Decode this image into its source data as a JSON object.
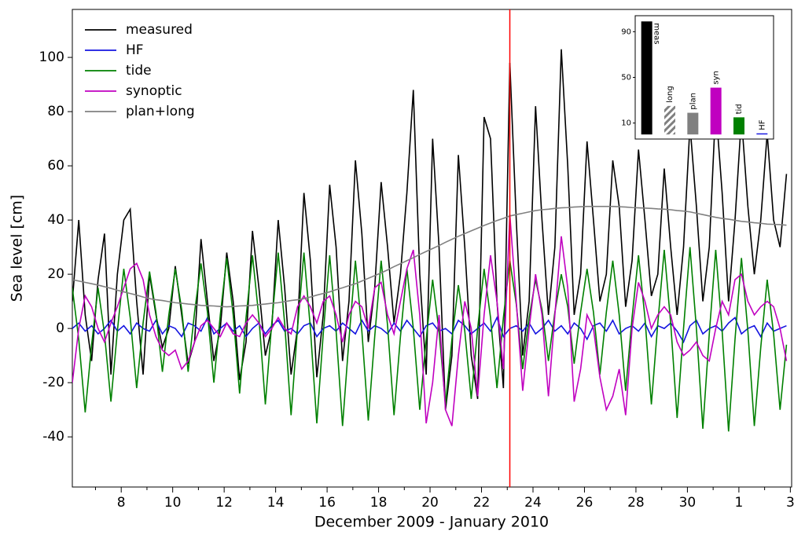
{
  "chart_data": {
    "type": "line",
    "xlabel": "December 2009 - January 2010",
    "ylabel": "Sea level [cm]",
    "xlim": [
      6.1,
      34.05
    ],
    "ylim": [
      -58.5,
      117.7
    ],
    "xticks": [
      8,
      10,
      12,
      14,
      16,
      18,
      20,
      22,
      24,
      26,
      28,
      30,
      {
        "value": 32,
        "label": "1"
      },
      {
        "value": 34,
        "label": "3"
      }
    ],
    "xminor_ticks": [
      7,
      9,
      11,
      13,
      15,
      17,
      19,
      21,
      23,
      25,
      27,
      29,
      31,
      33
    ],
    "yticks": [
      -40,
      -20,
      0,
      20,
      40,
      60,
      80,
      100
    ],
    "legend": "upper left",
    "vline": {
      "x": 23.1,
      "color": "#ff0000"
    },
    "x": [
      6.1,
      6.35,
      6.6,
      6.85,
      7.1,
      7.35,
      7.6,
      7.85,
      8.1,
      8.35,
      8.6,
      8.85,
      9.1,
      9.35,
      9.6,
      9.85,
      10.1,
      10.35,
      10.6,
      10.85,
      11.1,
      11.35,
      11.6,
      11.85,
      12.1,
      12.35,
      12.6,
      12.85,
      13.1,
      13.35,
      13.6,
      13.85,
      14.1,
      14.35,
      14.6,
      14.85,
      15.1,
      15.35,
      15.6,
      15.85,
      16.1,
      16.35,
      16.6,
      16.85,
      17.1,
      17.35,
      17.6,
      17.85,
      18.1,
      18.35,
      18.6,
      18.85,
      19.1,
      19.35,
      19.6,
      19.85,
      20.1,
      20.35,
      20.6,
      20.85,
      21.1,
      21.35,
      21.6,
      21.85,
      22.1,
      22.35,
      22.6,
      22.85,
      23.1,
      23.35,
      23.6,
      23.85,
      24.1,
      24.35,
      24.6,
      24.85,
      25.1,
      25.35,
      25.6,
      25.85,
      26.1,
      26.35,
      26.6,
      26.85,
      27.1,
      27.35,
      27.6,
      27.85,
      28.1,
      28.35,
      28.6,
      28.85,
      29.1,
      29.35,
      29.6,
      29.85,
      30.1,
      30.35,
      30.6,
      30.85,
      31.1,
      31.35,
      31.6,
      31.85,
      32.1,
      32.35,
      32.6,
      32.85,
      33.1,
      33.35,
      33.6,
      33.85
    ],
    "series": [
      {
        "name": "measured",
        "color": "#000000",
        "values": [
          10,
          40,
          5,
          -12,
          18,
          35,
          -17,
          20,
          40,
          44,
          10,
          -17,
          20,
          5,
          -7,
          0,
          23,
          5,
          -13,
          -5,
          33,
          10,
          -12,
          0,
          28,
          10,
          -19,
          -5,
          36,
          15,
          -10,
          0,
          40,
          15,
          -17,
          0,
          50,
          25,
          -18,
          5,
          53,
          30,
          -12,
          10,
          62,
          35,
          -5,
          15,
          54,
          30,
          2,
          20,
          50,
          88,
          20,
          -17,
          70,
          30,
          -30,
          -10,
          64,
          30,
          -10,
          -26,
          78,
          70,
          10,
          -22,
          98,
          40,
          -10,
          10,
          82,
          40,
          5,
          30,
          103,
          60,
          5,
          20,
          69,
          40,
          10,
          20,
          62,
          45,
          8,
          25,
          66,
          40,
          12,
          20,
          59,
          30,
          5,
          30,
          75,
          45,
          10,
          30,
          82,
          50,
          10,
          40,
          78,
          45,
          20,
          40,
          72,
          40,
          30,
          57
        ]
      },
      {
        "name": "HF",
        "color": "#1515e0",
        "values": [
          0,
          2,
          -1,
          1,
          -2,
          0,
          3,
          -1,
          1,
          -2,
          2,
          0,
          -1,
          3,
          -2,
          1,
          0,
          -3,
          2,
          1,
          -1,
          4,
          -2,
          0,
          2,
          -1,
          1,
          -3,
          0,
          2,
          -2,
          1,
          3,
          -1,
          0,
          -2,
          1,
          2,
          -3,
          0,
          1,
          -1,
          2,
          0,
          -2,
          3,
          -1,
          1,
          0,
          -2,
          2,
          -1,
          3,
          0,
          -3,
          1,
          2,
          -1,
          0,
          -2,
          3,
          1,
          -2,
          0,
          2,
          -1,
          4,
          -3,
          0,
          1,
          -1,
          2,
          -2,
          0,
          3,
          -1,
          1,
          -2,
          2,
          0,
          -4,
          1,
          2,
          -1,
          3,
          -2,
          0,
          1,
          -1,
          2,
          -3,
          1,
          0,
          2,
          -1,
          -5,
          1,
          3,
          -2,
          0,
          1,
          -1,
          2,
          4,
          -2,
          0,
          1,
          -3,
          2,
          -1,
          0,
          1
        ]
      },
      {
        "name": "tide",
        "color": "#008000",
        "values": [
          15,
          -4,
          -31,
          -6,
          15,
          -2,
          -27,
          -1,
          22,
          4,
          -22,
          2,
          21,
          6,
          -16,
          5,
          22,
          7,
          -16,
          6,
          24,
          6,
          -20,
          5,
          26,
          5,
          -24,
          4,
          27,
          4,
          -28,
          2,
          28,
          2,
          -32,
          0,
          28,
          0,
          -35,
          -2,
          27,
          -1,
          -36,
          -4,
          25,
          -1,
          -34,
          -3,
          25,
          1,
          -32,
          -3,
          22,
          0,
          -30,
          -4,
          18,
          -1,
          -28,
          -4,
          16,
          -1,
          -26,
          0,
          22,
          4,
          -22,
          4,
          25,
          9,
          -15,
          4,
          18,
          7,
          -12,
          6,
          20,
          8,
          -13,
          6,
          22,
          6,
          -17,
          6,
          25,
          5,
          -23,
          4,
          27,
          4,
          -28,
          2,
          29,
          2,
          -33,
          0,
          30,
          0,
          -37,
          -2,
          29,
          -1,
          -38,
          -4,
          26,
          -1,
          -36,
          -7,
          18,
          -2,
          -30,
          -6
        ]
      },
      {
        "name": "synoptic",
        "color": "#c000c0",
        "values": [
          -20,
          0,
          12,
          8,
          0,
          -5,
          2,
          8,
          15,
          22,
          24,
          18,
          5,
          -3,
          -8,
          -10,
          -8,
          -15,
          -12,
          -5,
          1,
          3,
          0,
          -3,
          2,
          -2,
          -3,
          2,
          5,
          2,
          -3,
          0,
          4,
          0,
          -2,
          8,
          12,
          8,
          2,
          10,
          12,
          5,
          -5,
          5,
          10,
          8,
          0,
          15,
          17,
          5,
          -2,
          10,
          22,
          29,
          5,
          -35,
          -20,
          5,
          -30,
          -36,
          -10,
          10,
          0,
          -25,
          5,
          27,
          10,
          -15,
          42,
          10,
          -23,
          0,
          20,
          5,
          -25,
          5,
          34,
          15,
          -27,
          -15,
          5,
          0,
          -18,
          -30,
          -25,
          -15,
          -32,
          0,
          17,
          10,
          0,
          5,
          8,
          5,
          -5,
          -10,
          -8,
          -5,
          -10,
          -12,
          0,
          10,
          5,
          18,
          20,
          10,
          5,
          8,
          10,
          8,
          0,
          -12
        ]
      },
      {
        "name": "plan+long",
        "color": "#808080",
        "values": [
          18,
          17.5,
          17,
          16.5,
          16,
          15.4,
          14.8,
          14.1,
          13.5,
          12.9,
          12.3,
          11.6,
          11,
          10.6,
          10.3,
          9.9,
          9.5,
          9.3,
          9,
          8.8,
          8.5,
          8.4,
          8.3,
          8.1,
          8,
          8.1,
          8.3,
          8.4,
          8.5,
          8.8,
          9,
          9.3,
          9.5,
          9.9,
          10.3,
          10.6,
          11,
          11.6,
          12.3,
          12.9,
          13.5,
          14.3,
          15,
          15.8,
          16.5,
          17.5,
          18.5,
          19.5,
          20.5,
          21.6,
          22.8,
          23.9,
          25,
          26.1,
          27.3,
          28.4,
          29.5,
          30.6,
          31.8,
          32.9,
          34,
          35,
          36,
          37,
          38,
          38.9,
          39.8,
          40.6,
          41.5,
          42,
          42.5,
          43,
          43.5,
          43.8,
          44,
          44.3,
          44.5,
          44.6,
          44.8,
          44.9,
          45,
          45,
          45,
          45,
          45,
          44.9,
          44.8,
          44.6,
          44.5,
          44.4,
          44.3,
          44.1,
          44,
          43.8,
          43.5,
          43.3,
          43,
          42.5,
          42,
          41.5,
          41,
          40.6,
          40.3,
          39.9,
          39.5,
          39.3,
          39,
          38.8,
          38.5,
          38.4,
          38.3,
          38.1
        ]
      }
    ],
    "inset": {
      "type": "bar",
      "categories": [
        "meas",
        "long",
        "plan",
        "syn",
        "tid",
        "HF"
      ],
      "values": [
        99,
        25,
        19,
        41,
        15,
        1
      ],
      "colors": [
        "#000000",
        "#808080",
        "#808080",
        "#c000c0",
        "#008000",
        "#1515e0"
      ],
      "hatched": [
        false,
        true,
        false,
        false,
        false,
        false
      ],
      "ylim": [
        -4,
        104
      ],
      "yticks": [
        10,
        50,
        90
      ]
    }
  }
}
